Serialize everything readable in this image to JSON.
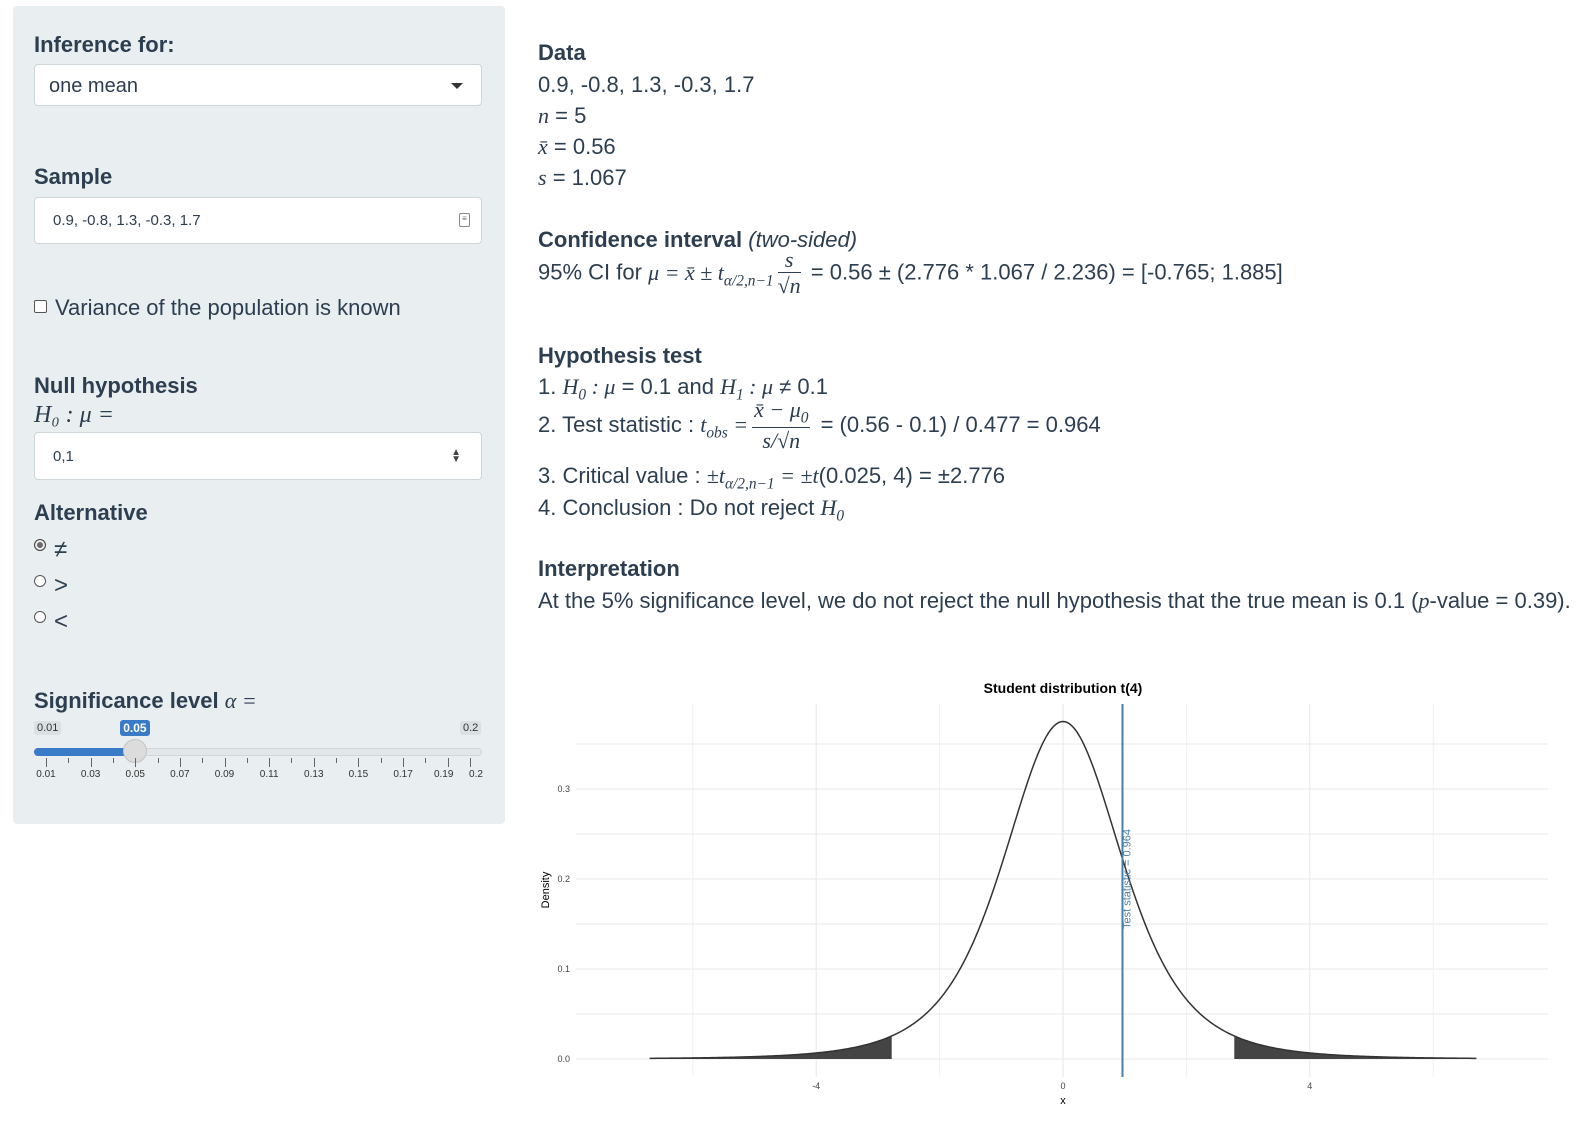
{
  "sidebar": {
    "inference_label": "Inference for:",
    "inference_value": "one mean",
    "sample_label": "Sample",
    "sample_value": "0.9, -0.8, 1.3, -0.3, 1.7",
    "variance_label": "Variance of the population is known",
    "variance_checked": false,
    "null_label": "Null hypothesis",
    "null_formula": "H₀ : μ =",
    "null_value": "0,1",
    "alt_label": "Alternative",
    "alternatives": [
      {
        "symbol": "≠",
        "selected": true
      },
      {
        "symbol": ">",
        "selected": false
      },
      {
        "symbol": "<",
        "selected": false
      }
    ],
    "sig_label": "Significance level",
    "sig_symbol": "α =",
    "slider": {
      "min": 0.01,
      "max": 0.2,
      "value": 0.05,
      "min_label": "0.01",
      "max_label": "0.2",
      "value_label": "0.05",
      "ticks": [
        "0.01",
        "0.03",
        "0.05",
        "0.07",
        "0.09",
        "0.11",
        "0.13",
        "0.15",
        "0.17",
        "0.19",
        "0.2"
      ]
    }
  },
  "main": {
    "data_heading": "Data",
    "data_values": "0.9, -0.8, 1.3, -0.3, 1.7",
    "n_line": "= 5",
    "xbar_line": "= 0.56",
    "s_line": "= 1.067",
    "ci_heading": "Confidence interval",
    "ci_sub": "(two-sided)",
    "ci_prefix": "95% CI for",
    "ci_result": "= 0.56 ± (2.776 * 1.067 / 2.236) = [-0.765; 1.885]",
    "ht_heading": "Hypothesis test",
    "ht_1_prefix": "1.",
    "ht_1_mid": "= 0.1 and",
    "ht_1_end": "≠ 0.1",
    "ht_2_prefix": "2. Test statistic :",
    "ht_2_result": "= (0.56 - 0.1) / 0.477 = 0.964",
    "ht_3_prefix": "3. Critical value :",
    "ht_3_result": "(0.025, 4) = ±2.776",
    "ht_4_prefix": "4. Conclusion : Do not reject",
    "int_heading": "Interpretation",
    "int_text_a": "At the 5% significance level, we do not reject the null hypothesis that the true mean is 0.1 (",
    "int_text_b": "-value = 0.39)."
  },
  "chart_data": {
    "type": "line",
    "title": "Student distribution t(4)",
    "xlabel": "x",
    "ylabel": "Density",
    "df": 4,
    "xlim": [
      -7,
      7
    ],
    "ylim": [
      0,
      0.375
    ],
    "x_ticks": [
      -4,
      0,
      4
    ],
    "y_ticks": [
      0.0,
      0.1,
      0.2,
      0.3
    ],
    "x_tick_labels": [
      "-4",
      "0",
      "4"
    ],
    "y_tick_labels": [
      "0.0",
      "0.1",
      "0.2",
      "0.3"
    ],
    "critical_value": 2.776,
    "test_statistic": 0.964,
    "test_statistic_label": "Test statistic = 0.964",
    "line_color": "#333333",
    "stat_line_color": "#4a7fa8",
    "shade_color": "#444444",
    "grid": true
  }
}
